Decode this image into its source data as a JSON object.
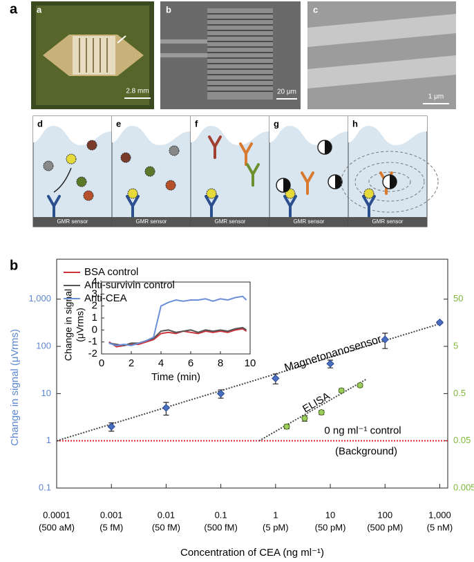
{
  "panel_labels": [
    "a",
    "b"
  ],
  "micrographs": [
    {
      "label": "a",
      "scale": "2.8 mm"
    },
    {
      "label": "b",
      "scale": "20 μm"
    },
    {
      "label": "c",
      "scale": "1 μm"
    }
  ],
  "schematics": [
    {
      "label": "d",
      "sensor": "GMR sensor"
    },
    {
      "label": "e",
      "sensor": "GMR sensor"
    },
    {
      "label": "f",
      "sensor": "GMR sensor"
    },
    {
      "label": "g",
      "sensor": "GMR sensor"
    },
    {
      "label": "h",
      "sensor": "GMR sensor"
    }
  ],
  "chart_data": [
    {
      "type": "scatter",
      "log_x": true,
      "log_y": true,
      "x_label": "Concentration of CEA (ng ml⁻¹)",
      "y_label": "Change in signal (μVrms)",
      "xlim": [
        0.0001,
        1400
      ],
      "ylim": [
        0.1,
        7000
      ],
      "y2lim": [
        0.005,
        350
      ],
      "xticks": [
        0.0001,
        0.001,
        0.01,
        0.1,
        1,
        10,
        100,
        {
          "value": 1000,
          "label": "1,000"
        }
      ],
      "xtick_sublabels": [
        "(500 aM)",
        "(5 fM)",
        "(50 fM)",
        "(500 fM)",
        "(5 pM)",
        "(50 pM)",
        "(500 pM)",
        "(5 nM)"
      ],
      "yticks": [
        0.1,
        1,
        10,
        100,
        {
          "value": 1000,
          "label": "1,000"
        }
      ],
      "y2ticks": [
        0.005,
        0.05,
        0.5,
        5,
        50
      ],
      "y_color": "#5b86d1",
      "y2_color": "#7db83a",
      "series": [
        {
          "name": "Magnetonanosensor",
          "color": "#4a6fc0",
          "x": [
            0.001,
            0.01,
            0.1,
            1,
            10,
            100,
            1000
          ],
          "values": [
            2.0,
            5.0,
            10,
            21,
            43,
            140,
            320
          ],
          "errors": [
            0.4,
            1.5,
            2,
            5,
            8,
            50,
            20
          ],
          "trend": {
            "x": [
              0.0001,
              1000
            ],
            "values": [
              1,
              300
            ]
          }
        },
        {
          "name": "ELISA",
          "color": "#9acd5a",
          "axis": "y2",
          "x": [
            1.6,
            3.4,
            6.9,
            16,
            35
          ],
          "values": [
            0.1,
            0.15,
            0.2,
            0.58,
            0.75
          ],
          "errors": [
            0.01,
            0.02,
            0.02,
            0.05,
            0.06
          ],
          "trend": {
            "x": [
              0.5,
              45
            ],
            "values": [
              0.05,
              1.0
            ]
          }
        }
      ],
      "reference_line": {
        "value": 1,
        "label": "0 ng ml⁻¹ control",
        "sublabel": "(Background)",
        "color": "#d9262c"
      }
    },
    {
      "type": "line",
      "x_label": "Time (min)",
      "y_label": [
        "Change in signal",
        "(μVrms)"
      ],
      "xlim": [
        0,
        10
      ],
      "ylim": [
        -2,
        4
      ],
      "xticks": [
        0,
        2,
        4,
        6,
        8,
        10
      ],
      "yticks": [
        -2,
        -1,
        0,
        1,
        2,
        3,
        4
      ],
      "x": [
        0.5,
        1,
        1.5,
        2,
        2.5,
        3,
        3.5,
        4,
        4.5,
        5,
        5.5,
        6,
        6.5,
        7,
        7.5,
        8,
        8.5,
        9,
        9.5,
        9.75
      ],
      "series": [
        {
          "name": "BSA control",
          "color": "#d0303a",
          "values": [
            -1.0,
            -1.4,
            -1.3,
            -1.2,
            -1.2,
            -1.0,
            -0.8,
            -0.3,
            -0.2,
            -0.3,
            -0.1,
            -0.2,
            -0.3,
            -0.1,
            -0.2,
            -0.1,
            -0.2,
            0.0,
            0.1,
            -0.1
          ]
        },
        {
          "name": "Anti-survivin control",
          "color": "#555555",
          "values": [
            -1.1,
            -1.2,
            -1.3,
            -1.1,
            -1.1,
            -0.9,
            -0.7,
            -0.1,
            0.0,
            -0.2,
            -0.1,
            0.0,
            -0.2,
            0.0,
            -0.1,
            0.0,
            -0.1,
            0.1,
            0.2,
            0.0
          ]
        },
        {
          "name": "Anti-CEA",
          "color": "#6a8fd8",
          "values": [
            -1.1,
            -1.3,
            -1.2,
            -1.3,
            -1.1,
            -0.9,
            -0.6,
            2.0,
            2.3,
            2.5,
            2.4,
            2.5,
            2.5,
            2.6,
            2.4,
            2.6,
            2.5,
            2.7,
            2.8,
            2.5
          ]
        }
      ]
    }
  ]
}
